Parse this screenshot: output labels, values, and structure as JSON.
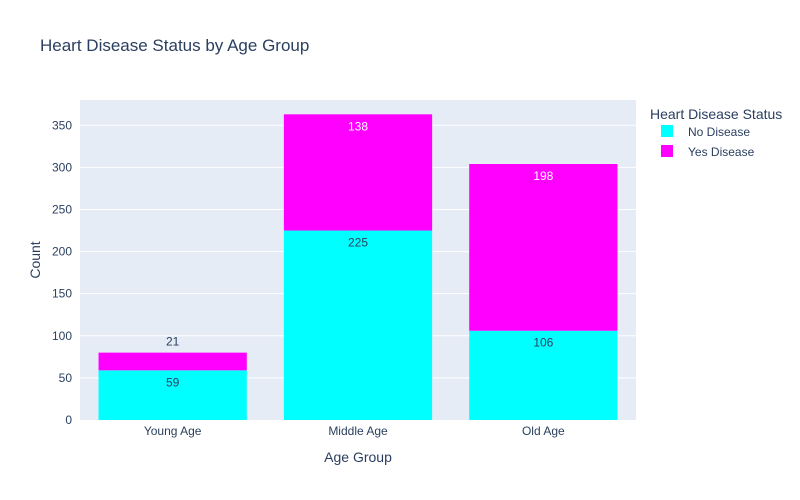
{
  "chart_data": {
    "type": "bar",
    "stacked": true,
    "title": "Heart Disease Status by Age Group",
    "xlabel": "Age Group",
    "ylabel": "Count",
    "categories": [
      "Young Age",
      "Middle Age",
      "Old Age"
    ],
    "series": [
      {
        "name": "No Disease",
        "values": [
          59,
          225,
          106
        ],
        "color": "#00ffff"
      },
      {
        "name": "Yes Disease",
        "values": [
          21,
          138,
          198
        ],
        "color": "#ff00ff"
      }
    ],
    "ylim": [
      0,
      380
    ],
    "yticks": [
      0,
      50,
      100,
      150,
      200,
      250,
      300,
      350
    ],
    "legend": {
      "title": "Heart Disease Status",
      "placement": "top-right"
    },
    "grid": true,
    "colors": {
      "plot_bg": "#e5ecf6",
      "grid": "#ffffff",
      "text": "#2a3f5f"
    }
  }
}
